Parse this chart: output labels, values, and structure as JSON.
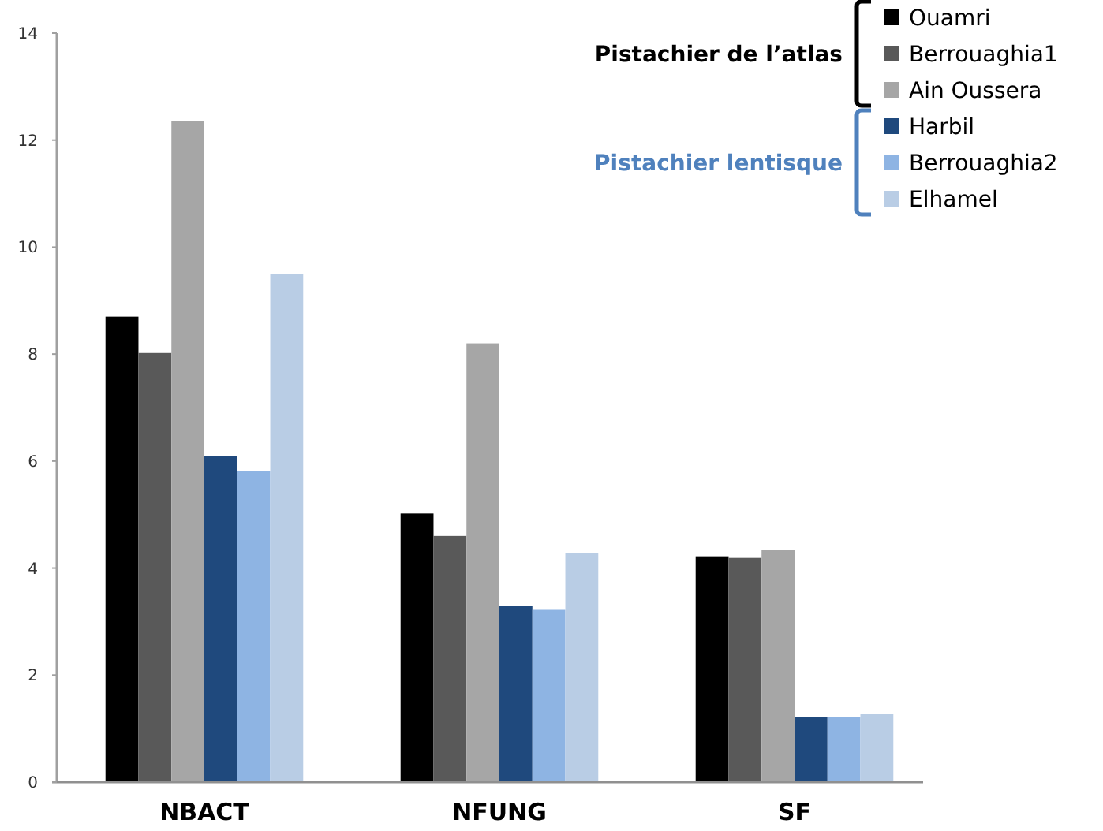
{
  "chart_data": {
    "type": "bar",
    "categories": [
      "NBACT",
      "NFUNG",
      "SF"
    ],
    "series": [
      {
        "name": "Ouamri",
        "color": "#000000",
        "values": [
          8.7,
          5.02,
          4.22
        ]
      },
      {
        "name": "Berrouaghia1",
        "color": "#595959",
        "values": [
          8.02,
          4.6,
          4.19
        ]
      },
      {
        "name": "Ain Oussera",
        "color": "#a6a6a6",
        "values": [
          12.36,
          8.2,
          4.34
        ]
      },
      {
        "name": "Harbil",
        "color": "#1f497d",
        "values": [
          6.1,
          3.3,
          1.21
        ]
      },
      {
        "name": "Berrouaghia2",
        "color": "#8eb4e3",
        "values": [
          5.81,
          3.22,
          1.21
        ]
      },
      {
        "name": "Elhamel",
        "color": "#b9cde5",
        "values": [
          9.5,
          4.28,
          1.27
        ]
      }
    ],
    "ylim": [
      0,
      14
    ],
    "yticks": [
      0,
      2,
      4,
      6,
      8,
      10,
      12,
      14
    ],
    "grid": false,
    "legend": "top right",
    "annotations": [
      "Pistachier de l’atlas",
      "Pistachier lentisque"
    ]
  }
}
